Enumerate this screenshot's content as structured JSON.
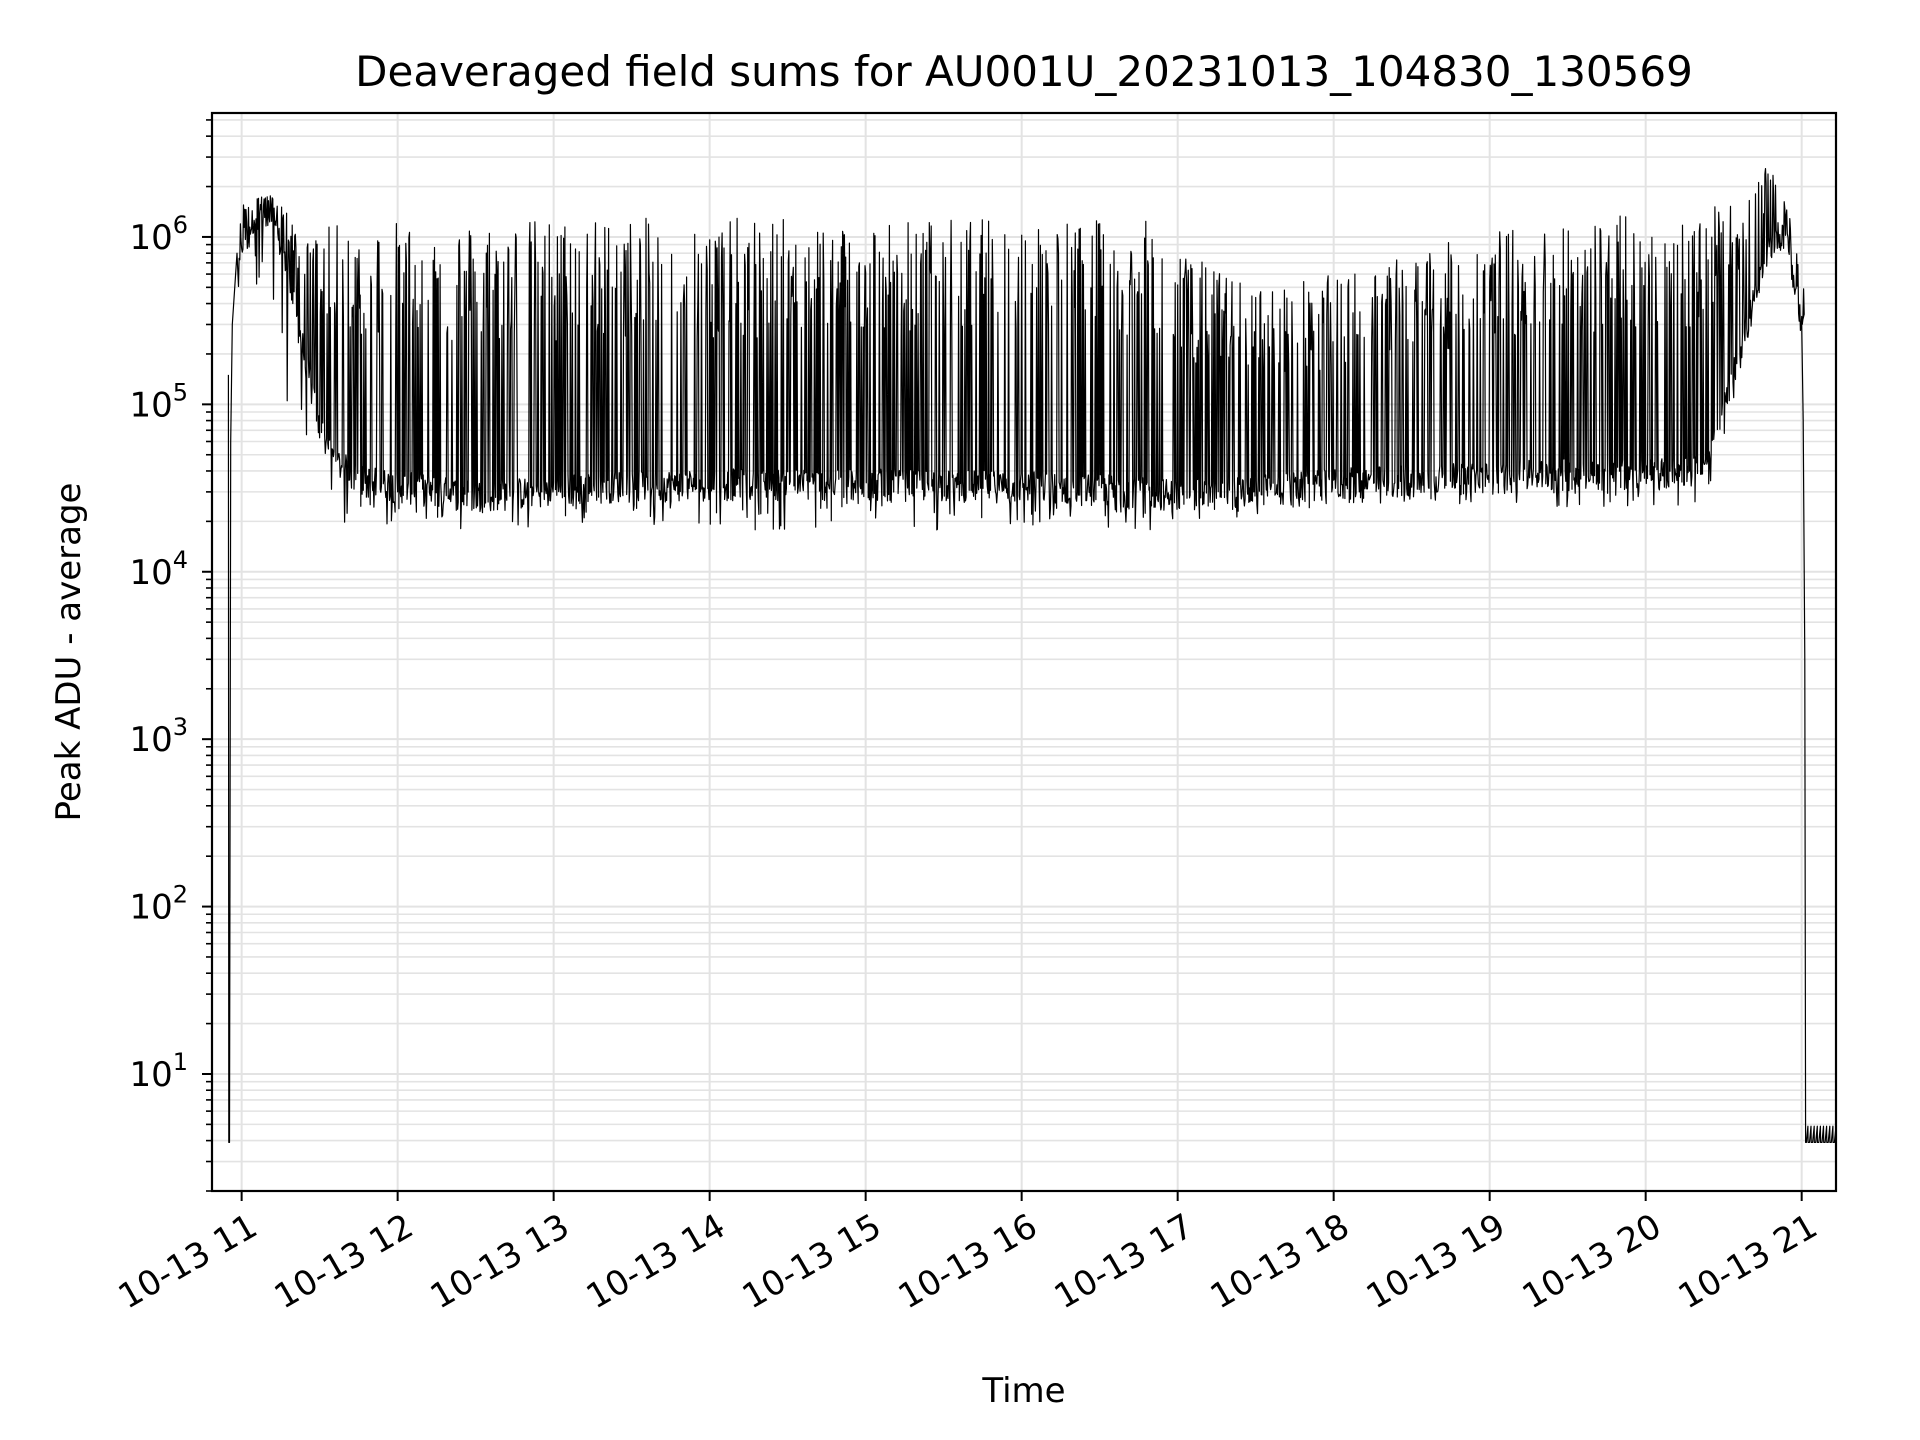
{
  "chart_data": {
    "type": "line",
    "title": "Deaveraged field sums for AU001U_20231013_104830_130569",
    "xlabel": "Time",
    "ylabel": "Peak ADU - average",
    "yscale": "log",
    "ylim": [
      2,
      5500000
    ],
    "xlim_hours": [
      10.81,
      21.22
    ],
    "grid": true,
    "legend": "none",
    "line_color": "#000000",
    "grid_color": "#e3e3e3",
    "x_ticks": [
      {
        "hour": 11,
        "label": "10-13 11"
      },
      {
        "hour": 12,
        "label": "10-13 12"
      },
      {
        "hour": 13,
        "label": "10-13 13"
      },
      {
        "hour": 14,
        "label": "10-13 14"
      },
      {
        "hour": 15,
        "label": "10-13 15"
      },
      {
        "hour": 16,
        "label": "10-13 16"
      },
      {
        "hour": 17,
        "label": "10-13 17"
      },
      {
        "hour": 18,
        "label": "10-13 18"
      },
      {
        "hour": 19,
        "label": "10-13 19"
      },
      {
        "hour": 20,
        "label": "10-13 20"
      },
      {
        "hour": 21,
        "label": "10-13 21"
      }
    ],
    "y_ticks": [
      {
        "value": 10,
        "base": "10",
        "exp": "1"
      },
      {
        "value": 100,
        "base": "10",
        "exp": "2"
      },
      {
        "value": 1000,
        "base": "10",
        "exp": "3"
      },
      {
        "value": 10000,
        "base": "10",
        "exp": "4"
      },
      {
        "value": 100000,
        "base": "10",
        "exp": "5"
      },
      {
        "value": 1000000,
        "base": "10",
        "exp": "6"
      }
    ],
    "series": [
      {
        "envelope": {
          "hours": [
            10.93,
            11.0,
            11.1,
            11.25,
            11.4,
            11.5,
            11.6,
            11.75,
            12.0,
            12.5,
            13.0,
            13.3,
            14.0,
            15.0,
            16.0,
            16.8,
            17.0,
            17.5,
            18.0,
            18.5,
            19.0,
            19.5,
            20.0,
            20.4,
            20.6,
            20.8,
            20.9,
            21.0
          ],
          "baseline": [
            150000,
            900000,
            1400000,
            900000,
            200000,
            70000,
            45000,
            35000,
            32000,
            28000,
            30000,
            32000,
            33000,
            33000,
            32000,
            30000,
            28000,
            30000,
            33000,
            35000,
            36000,
            38000,
            38000,
            40000,
            200000,
            900000,
            1100000,
            300000
          ],
          "peak": [
            160000,
            1600000,
            1900000,
            1700000,
            900000,
            1100000,
            1200000,
            1200000,
            1250000,
            1250000,
            1300000,
            1300000,
            1300000,
            1300000,
            1300000,
            1250000,
            850000,
            500000,
            600000,
            800000,
            1100000,
            1300000,
            1400000,
            1500000,
            1600000,
            2800000,
            1800000,
            600000
          ],
          "floor": [
            3.9,
            900000,
            500000,
            150000,
            40000,
            25000,
            19000,
            19000,
            19000,
            16000,
            17000,
            18000,
            18000,
            17000,
            18000,
            17000,
            18000,
            22000,
            24000,
            25000,
            25000,
            24000,
            23000,
            26000,
            150000,
            800000,
            900000,
            200000
          ]
        },
        "drop_hour": 21.02,
        "end_value": 3.9,
        "trace_resolution_hours": 0.004
      }
    ]
  }
}
